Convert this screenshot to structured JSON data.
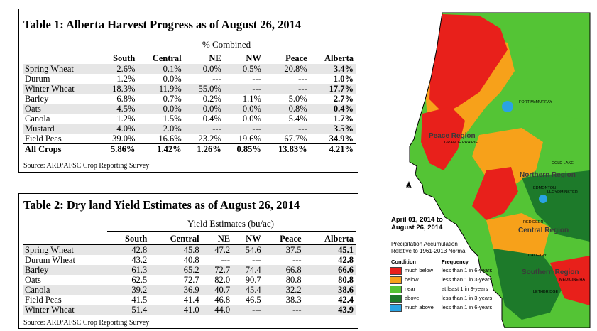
{
  "table1": {
    "title": "Table 1: Alberta Harvest Progress as of August 26, 2014",
    "subtitle": "% Combined",
    "columns": [
      "",
      "South",
      "Central",
      "NE",
      "NW",
      "Peace",
      "Alberta"
    ],
    "rows": [
      [
        "Spring Wheat",
        "2.6%",
        "0.1%",
        "0.0%",
        "0.5%",
        "20.8%",
        "3.4%"
      ],
      [
        "Durum",
        "1.2%",
        "0.0%",
        "---",
        "---",
        "---",
        "1.0%"
      ],
      [
        "Winter Wheat",
        "18.3%",
        "11.9%",
        "55.0%",
        "---",
        "---",
        "17.7%"
      ],
      [
        "Barley",
        "6.8%",
        "0.7%",
        "0.2%",
        "1.1%",
        "5.0%",
        "2.7%"
      ],
      [
        "Oats",
        "4.5%",
        "0.0%",
        "0.0%",
        "0.0%",
        "0.8%",
        "0.4%"
      ],
      [
        "Canola",
        "1.2%",
        "1.5%",
        "0.4%",
        "0.0%",
        "5.4%",
        "1.7%"
      ],
      [
        "Mustard",
        "4.0%",
        "2.0%",
        "---",
        "---",
        "---",
        "3.5%"
      ],
      [
        "Field Peas",
        "39.0%",
        "16.6%",
        "23.2%",
        "19.6%",
        "67.7%",
        "34.9%"
      ]
    ],
    "total": [
      "All Crops",
      "5.86%",
      "1.42%",
      "1.26%",
      "0.85%",
      "13.83%",
      "4.21%"
    ],
    "source": "Source: ARD/AFSC Crop Reporting Survey"
  },
  "table2": {
    "title": "Table 2: Dry land Yield Estimates as of August 26, 2014",
    "subtitle": "Yield Estimates (bu/ac)",
    "columns": [
      "",
      "South",
      "Central",
      "NE",
      "NW",
      "Peace",
      "Alberta"
    ],
    "rows": [
      [
        "Spring Wheat",
        "42.8",
        "45.8",
        "47.2",
        "54.6",
        "37.5",
        "45.1"
      ],
      [
        "Durum Wheat",
        "43.2",
        "40.8",
        "---",
        "---",
        "---",
        "42.8"
      ],
      [
        "Barley",
        "61.3",
        "65.2",
        "72.7",
        "74.4",
        "66.8",
        "66.6"
      ],
      [
        "Oats",
        "62.5",
        "72.7",
        "82.0",
        "90.7",
        "80.8",
        "80.8"
      ],
      [
        "Canola",
        "39.2",
        "36.9",
        "40.7",
        "45.4",
        "32.2",
        "38.6"
      ],
      [
        "Field Peas",
        "41.5",
        "41.4",
        "46.8",
        "46.5",
        "38.3",
        "42.4"
      ],
      [
        "Winter Wheat",
        "51.4",
        "41.0",
        "44.0",
        "---",
        "---",
        "43.9"
      ]
    ],
    "source": "Source: ARD/AFSC Crop Reporting Survey"
  },
  "map": {
    "title_line1": "April 01, 2014 to",
    "title_line2": "August 26, 2014",
    "subtitle_line1": "Precipitation Accumulation",
    "subtitle_line2": "Relative to 1961-2013 Normal",
    "legend_condition_header": "Condition",
    "legend_frequency_header": "Frequency",
    "legend": [
      {
        "condition": "much below",
        "frequency": "less than 1 in 6-years",
        "color": "#e8201b"
      },
      {
        "condition": "below",
        "frequency": "less than 1 in 3-years",
        "color": "#f7a11a"
      },
      {
        "condition": "near",
        "frequency": "at least 1 in 3-years",
        "color": "#54c435"
      },
      {
        "condition": "above",
        "frequency": "less than 1 in 3-years",
        "color": "#1d7a2a"
      },
      {
        "condition": "much above",
        "frequency": "less than 1 in 6-years",
        "color": "#2aa3e3"
      }
    ],
    "regions": [
      "Peace Region",
      "Northern Region",
      "Central Region",
      "Southern Region"
    ],
    "cities": [
      "FORT McMURRAY",
      "GRANDE PRAIRIE",
      "COLD LAKE",
      "EDMONTON",
      "LLOYDMINSTER",
      "RED DEER",
      "CALGARY",
      "MEDICINE HAT",
      "LETHBRIDGE"
    ],
    "north_arrow": "N"
  }
}
